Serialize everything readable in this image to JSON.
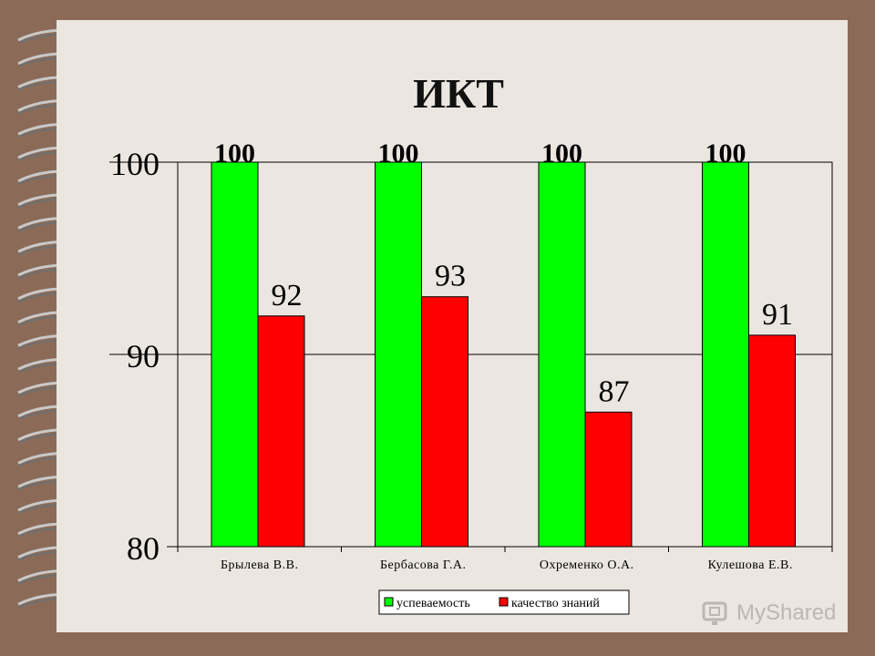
{
  "chart_data": {
    "type": "bar",
    "title": "ИКТ",
    "categories": [
      "Брылева В.В.",
      "Бербасова Г.А.",
      "Охременко О.А.",
      "Кулешова Е.В."
    ],
    "series": [
      {
        "name": "успеваемость",
        "values": [
          100,
          100,
          100,
          100
        ],
        "color": "#00ff00"
      },
      {
        "name": "качество знаний",
        "values": [
          92,
          93,
          87,
          91
        ],
        "color": "#ff0000"
      }
    ],
    "ylim": [
      80,
      100
    ],
    "yticks": [
      80,
      90,
      100
    ],
    "grid": true,
    "legend": "bottom"
  },
  "watermark": {
    "text": "MyShared"
  }
}
